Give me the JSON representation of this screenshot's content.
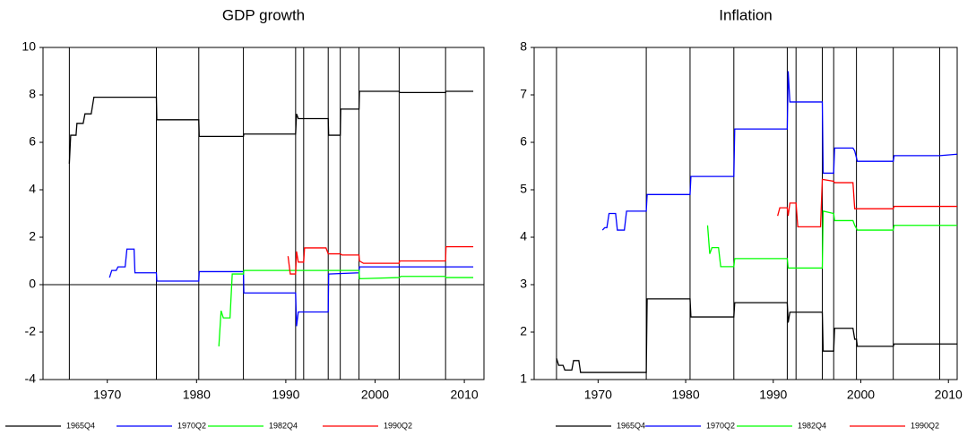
{
  "chart_data": [
    {
      "type": "line",
      "title": "GDP growth",
      "xlim": [
        1962.8,
        2012.2
      ],
      "xticks": [
        1970,
        1980,
        1990,
        2000,
        2010
      ],
      "ylim": [
        -4,
        10
      ],
      "yticks": [
        -4,
        -2,
        0,
        2,
        4,
        6,
        8,
        10
      ],
      "zero_line": true,
      "vlines": [
        1965.75,
        1975.5,
        1980.25,
        1985.25,
        1991.1,
        1992.0,
        1994.75,
        1996.1,
        1998.2,
        2002.7,
        2007.9
      ],
      "series": [
        {
          "name": "1965Q4",
          "color": "#000000",
          "x": [
            1965.75,
            1965.9,
            1966.5,
            1966.6,
            1967.3,
            1967.5,
            1968.2,
            1968.5,
            1975.5,
            1975.55,
            1980.25,
            1980.3,
            1985.25,
            1985.3,
            1991.1,
            1991.2,
            1991.4,
            1994.75,
            1994.8,
            1996.1,
            1996.15,
            1998.2,
            1998.25,
            2002.7,
            2002.75,
            2007.9,
            2007.95,
            2011
          ],
          "values": [
            5.1,
            6.3,
            6.3,
            6.8,
            6.8,
            7.2,
            7.2,
            7.9,
            7.9,
            6.95,
            6.95,
            6.25,
            6.25,
            6.35,
            6.35,
            7.2,
            7.0,
            7.0,
            6.3,
            6.3,
            7.4,
            7.4,
            8.15,
            8.15,
            8.1,
            8.1,
            8.15,
            8.15
          ]
        },
        {
          "name": "1970Q2",
          "color": "#0000ff",
          "x": [
            1970.25,
            1970.5,
            1971,
            1971.2,
            1972,
            1972.2,
            1973,
            1973.1,
            1975.5,
            1975.55,
            1980.25,
            1980.3,
            1985.25,
            1985.3,
            1991.1,
            1991.2,
            1991.4,
            1994.75,
            1994.8,
            1998.2,
            1998.25,
            2011
          ],
          "values": [
            0.3,
            0.6,
            0.6,
            0.75,
            0.75,
            1.5,
            1.5,
            0.5,
            0.5,
            0.15,
            0.15,
            0.55,
            0.55,
            -0.35,
            -0.35,
            -1.75,
            -1.15,
            -1.15,
            0.45,
            0.5,
            0.75,
            0.75
          ]
        },
        {
          "name": "1982Q4",
          "color": "#00ff00",
          "x": [
            1982.5,
            1982.75,
            1983,
            1983.75,
            1984,
            1985.25,
            1985.3,
            1998.2,
            1998.25,
            2002.7,
            2002.9,
            2007.9,
            2007.95,
            2011
          ],
          "values": [
            -2.6,
            -1.1,
            -1.4,
            -1.4,
            0.45,
            0.45,
            0.6,
            0.6,
            0.25,
            0.3,
            0.35,
            0.35,
            0.3,
            0.3
          ]
        },
        {
          "name": "1990Q2",
          "color": "#ff0000",
          "x": [
            1990.25,
            1990.5,
            1991.1,
            1991.2,
            1991.4,
            1992.0,
            1992.1,
            1994.5,
            1994.75,
            1996.1,
            1996.3,
            1998.2,
            1998.25,
            1998.7,
            2002.7,
            2002.75,
            2007.9,
            2007.95,
            2011
          ],
          "values": [
            1.2,
            0.45,
            0.45,
            1.4,
            0.95,
            0.95,
            1.55,
            1.55,
            1.3,
            1.3,
            1.25,
            1.25,
            1.0,
            0.9,
            0.9,
            1.0,
            1.0,
            1.6,
            1.6
          ]
        }
      ]
    },
    {
      "type": "line",
      "title": "Inflation",
      "xlim": [
        1962.7,
        2011.0
      ],
      "xticks": [
        1970,
        1980,
        1990,
        2000,
        2010
      ],
      "ylim": [
        1,
        8
      ],
      "yticks": [
        1,
        2,
        3,
        4,
        5,
        6,
        7,
        8
      ],
      "zero_line": false,
      "vlines": [
        1965.25,
        1975.5,
        1980.5,
        1985.5,
        1991.6,
        1992.6,
        1995.6,
        1996.9,
        1999.5,
        2003.7,
        2009.0
      ],
      "series": [
        {
          "name": "1965Q4",
          "color": "#000000",
          "x": [
            1965.25,
            1965.5,
            1966,
            1966.2,
            1967,
            1967.2,
            1967.8,
            1968,
            1975.5,
            1975.6,
            1980.5,
            1980.6,
            1985.5,
            1985.6,
            1991.6,
            1991.7,
            1991.9,
            1995.6,
            1995.7,
            1996.9,
            1997.0,
            1999.1,
            1999.3,
            1999.5,
            1999.6,
            2003.7,
            2003.8,
            2011
          ],
          "values": [
            1.45,
            1.3,
            1.3,
            1.2,
            1.2,
            1.4,
            1.4,
            1.15,
            1.15,
            2.7,
            2.7,
            2.32,
            2.32,
            2.62,
            2.62,
            2.2,
            2.42,
            2.42,
            1.6,
            1.6,
            2.08,
            2.08,
            1.85,
            1.85,
            1.7,
            1.7,
            1.75,
            1.75
          ]
        },
        {
          "name": "1970Q2",
          "color": "#0000ff",
          "x": [
            1970.5,
            1970.75,
            1971,
            1971.25,
            1972,
            1972.2,
            1973,
            1973.25,
            1975.5,
            1975.6,
            1980.5,
            1980.6,
            1985.5,
            1985.6,
            1991.6,
            1991.7,
            1991.9,
            1995.6,
            1995.7,
            1996.9,
            1997.0,
            1999.1,
            1999.3,
            1999.6,
            2003.7,
            2003.8,
            2009.0,
            2011
          ],
          "values": [
            4.15,
            4.2,
            4.2,
            4.5,
            4.5,
            4.15,
            4.15,
            4.55,
            4.55,
            4.9,
            4.9,
            5.28,
            5.28,
            6.28,
            6.28,
            7.5,
            6.85,
            6.85,
            5.35,
            5.35,
            5.88,
            5.88,
            5.82,
            5.6,
            5.6,
            5.72,
            5.72,
            5.75
          ]
        },
        {
          "name": "1982Q4",
          "color": "#00ff00",
          "x": [
            1982.5,
            1982.75,
            1983,
            1983.75,
            1984,
            1985.5,
            1985.6,
            1991.6,
            1991.7,
            1995.6,
            1995.7,
            1996.9,
            1997.0,
            1999.1,
            1999.3,
            1999.6,
            2003.7,
            2003.8,
            2011
          ],
          "values": [
            4.25,
            3.65,
            3.78,
            3.78,
            3.38,
            3.38,
            3.55,
            3.55,
            3.35,
            3.35,
            4.55,
            4.5,
            4.35,
            4.35,
            4.25,
            4.15,
            4.15,
            4.25,
            4.25
          ]
        },
        {
          "name": "1990Q2",
          "color": "#ff0000",
          "x": [
            1990.5,
            1990.75,
            1991.6,
            1991.7,
            1991.9,
            1992.6,
            1992.8,
            1995.4,
            1995.6,
            1996.9,
            1997.0,
            1999.1,
            1999.3,
            2003.7,
            2003.8,
            2011
          ],
          "values": [
            4.45,
            4.62,
            4.62,
            4.45,
            4.72,
            4.72,
            4.22,
            4.22,
            5.22,
            5.18,
            5.15,
            5.15,
            4.6,
            4.6,
            4.65,
            4.65
          ]
        }
      ]
    }
  ]
}
